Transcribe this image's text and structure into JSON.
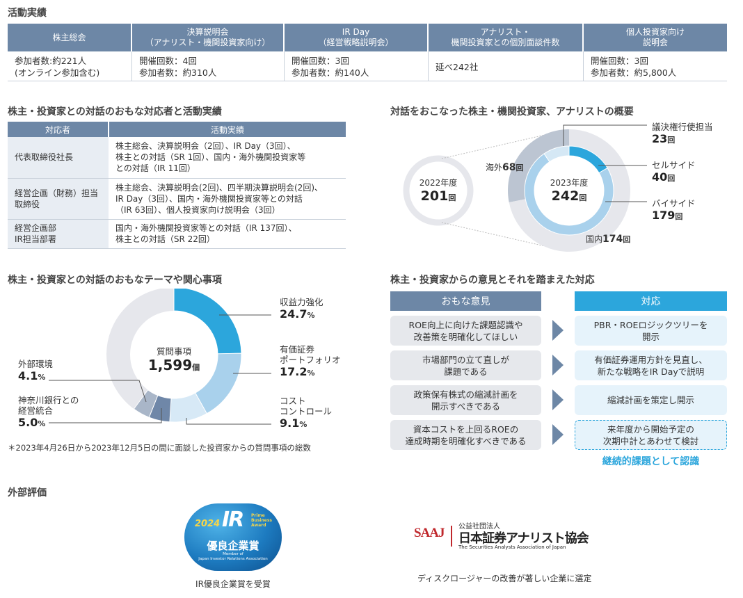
{
  "activity": {
    "title": "活動実績",
    "headers": [
      [
        "株主総会"
      ],
      [
        "決算説明会",
        "（アナリスト・機関投資家向け）"
      ],
      [
        "IR Day",
        "（経営戦略説明会）"
      ],
      [
        "アナリスト・",
        "機関投資家との個別面談件数"
      ],
      [
        "個人投資家向け",
        "説明会"
      ]
    ],
    "cells": [
      [
        "参加者数:約221人",
        "(オンライン参加含む)"
      ],
      [
        "開催回数：4回",
        "参加者数：約310人"
      ],
      [
        "開催回数：3回",
        "参加者数：約140人"
      ],
      [
        "延べ242社"
      ],
      [
        "開催回数：3回",
        "参加者数：約5,800人"
      ]
    ]
  },
  "dialogue": {
    "title": "株主・投資家との対話のおもな対応者と活動実績",
    "col1": "対応者",
    "col2": "活動実績",
    "rows": [
      {
        "who": [
          "代表取締役社長"
        ],
        "what": [
          "株主総会、決算説明会（2回）、IR Day（3回）、",
          "株主との対話（SR 1回）、国内・海外機関投資家等",
          "との対話（IR 11回）"
        ]
      },
      {
        "who": [
          "経営企画（財務）担当",
          "取締役"
        ],
        "what": [
          "株主総会、決算説明会(2回)、四半期決算説明会(2回)、",
          "IR Day（3回）、国内・海外機関投資家等との対話",
          "（IR 63回）、個人投資家向け説明会（3回）"
        ]
      },
      {
        "who": [
          "経営企画部",
          "IR担当部署"
        ],
        "what": [
          "国内・海外機関投資家等との対話（IR 137回）、",
          "株主との対話（SR 22回）"
        ]
      }
    ]
  },
  "overview": {
    "title": "対話をおこなった株主・機関投資家、アナリストの概要",
    "y2022_label": "2022年度",
    "y2022_value": "201",
    "y2023_label": "2023年度",
    "y2023_value": "242",
    "unit": "回",
    "overseas_label": "海外",
    "overseas_value": "68",
    "overseas_unit": "回",
    "domestic_label": "国内",
    "domestic_value": "174",
    "domestic_unit": "回",
    "proxy_label": "議決権行使担当",
    "proxy_value": "23",
    "sell_label": "セルサイド",
    "sell_value": "40",
    "buy_label": "バイサイド",
    "buy_value": "179"
  },
  "themes": {
    "title": "株主・投資家との対話のおもなテーマや関心事項",
    "center_label": "質問事項",
    "center_value": "1,599",
    "center_unit": "個",
    "items": [
      {
        "label": [
          "収益力強化"
        ],
        "value": "24.7",
        "pct": "%"
      },
      {
        "label": [
          "有価証券",
          "ポートフォリオ"
        ],
        "value": "17.2",
        "pct": "%"
      },
      {
        "label": [
          "コスト",
          "コントロール"
        ],
        "value": "9.1",
        "pct": "%"
      },
      {
        "label": [
          "神奈川銀行との",
          "経営統合"
        ],
        "value": "5.0",
        "pct": "%"
      },
      {
        "label": [
          "外部環境"
        ],
        "value": "4.1",
        "pct": "%"
      }
    ],
    "footnote": "＊2023年4月26日から2023年12月5日の間に面談した投資家からの質問事項の総数"
  },
  "opinions": {
    "title": "株主・投資家からの意見とそれを踏まえた対応",
    "left_header": "おもな意見",
    "right_header": "対応",
    "rows": [
      {
        "op": [
          "ROE向上に向けた課題認識や",
          "改善策を明確化してほしい"
        ],
        "rs": [
          "PBR・ROEロジックツリーを",
          "開示"
        ]
      },
      {
        "op": [
          "市場部門の立て直しが",
          "課題である"
        ],
        "rs": [
          "有価証券運用方針を見直し、",
          "新たな戦略をIR Dayで説明"
        ]
      },
      {
        "op": [
          "政策保有株式の縮減計画を",
          "開示すべきである"
        ],
        "rs": [
          "縮減計画を策定し開示"
        ]
      },
      {
        "op": [
          "資本コストを上回るROEの",
          "達成時期を明確化すべきである"
        ],
        "rs": [
          "来年度から開始予定の",
          "次期中計とあわせて検討"
        ]
      }
    ],
    "continuing": "継続的課題として認識"
  },
  "external": {
    "title": "外部評価",
    "award_year": "2024",
    "award_ir": "IR",
    "award_prime": [
      "Prime",
      "Business",
      "Award"
    ],
    "award_name": "優良企業賞",
    "award_member": [
      "Member of",
      "Japan Investor Relations Association"
    ],
    "award_caption": "IR優良企業賞を受賞",
    "saaj_logo": "SAAJ",
    "saaj_sub": "公益社団法人",
    "saaj_name": "日本証券アナリスト協会",
    "saaj_en": "The Securities Analysts Association of Japan",
    "saaj_caption": "ディスクロージャーの改善が著しい企業に選定"
  },
  "chart_data": [
    {
      "type": "pie",
      "title": "対話をおこなった株主・機関投資家、アナリストの概要",
      "categories": [
        "議決権行使担当",
        "セルサイド",
        "バイサイド"
      ],
      "values": [
        23,
        40,
        179
      ],
      "outer_ring": {
        "categories": [
          "海外",
          "国内"
        ],
        "values": [
          68,
          174
        ]
      },
      "comparison": {
        "2022年度": 201,
        "2023年度": 242
      }
    },
    {
      "type": "pie",
      "title": "株主・投資家との対話のおもなテーマや関心事項",
      "categories": [
        "収益力強化",
        "有価証券ポートフォリオ",
        "コストコントロール",
        "神奈川銀行との経営統合",
        "外部環境"
      ],
      "values": [
        24.7,
        17.2,
        9.1,
        5.0,
        4.1
      ],
      "total": 1599
    }
  ],
  "colors": {
    "header_bg": "#6d87a6",
    "accent": "#2ca6dc",
    "light_blue": "#a9d1ec",
    "gray_ring": "#e6e7ec"
  }
}
